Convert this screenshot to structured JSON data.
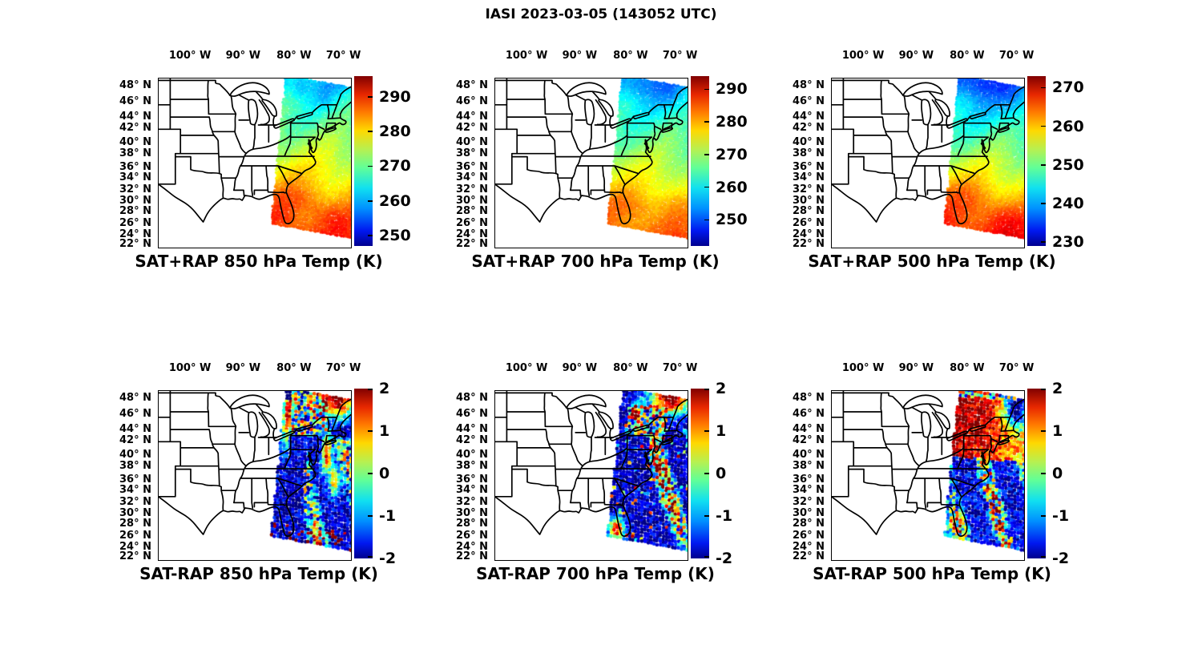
{
  "figure_title": "IASI 2023-03-05 (143052 UTC)",
  "chart_data": {
    "type": "map-grid",
    "rows": 2,
    "cols": 3,
    "region": "eastern United States with state boundaries and IASI satellite swath",
    "lon_ticks": [
      "100° W",
      "90° W",
      "80° W",
      "70° W"
    ],
    "lat_ticks": [
      "48° N",
      "46° N",
      "44° N",
      "42° N",
      "40° N",
      "38° N",
      "36° N",
      "34° N",
      "32° N",
      "30° N",
      "28° N",
      "26° N",
      "24° N",
      "22° N"
    ],
    "colormap": "jet",
    "panels": [
      {
        "title": "SAT+RAP 850 hPa Temp (K)",
        "kind": "analysis",
        "colorbar": {
          "units": "K",
          "min": 247,
          "max": 296,
          "ticks": [
            290,
            280,
            270,
            260,
            250
          ]
        },
        "swath_summary": "cyan/blue ~260 K air over the Great Lakes and New England grading southward to orange ~285-290 K over Florida and the subtropical Atlantic"
      },
      {
        "title": "SAT+RAP 700 hPa Temp (K)",
        "kind": "analysis",
        "colorbar": {
          "units": "K",
          "min": 242,
          "max": 294,
          "ticks": [
            290,
            280,
            270,
            260,
            250
          ]
        },
        "swath_summary": "blue/cyan ~255-260 K north grading to orange-red ~282-288 K south"
      },
      {
        "title": "SAT+RAP 500 hPa Temp (K)",
        "kind": "analysis",
        "colorbar": {
          "units": "K",
          "min": 229,
          "max": 273,
          "ticks": [
            270,
            260,
            250,
            240,
            230
          ]
        },
        "swath_summary": "deep blue ~238 K over the north, green ~250 K mid-Atlantic, orange ~265 K over Florida"
      },
      {
        "title": "SAT-RAP 850 hPa Temp (K)",
        "kind": "difference",
        "colorbar": {
          "units": "K",
          "min": -2,
          "max": 2,
          "ticks": [
            2,
            1,
            0,
            -1,
            -2
          ]
        },
        "swath_summary": "dark blue (< -1.5 K) bias over the mid-Atlantic, dark red (> +1.5 K) cluster over the Northeast and along the northwest swath edge, mixed cyan/yellow speckle offshore, orange dots on the south edge"
      },
      {
        "title": "SAT-RAP 700 hPa Temp (K)",
        "kind": "difference",
        "colorbar": {
          "units": "K",
          "min": -2,
          "max": 2,
          "ticks": [
            2,
            1,
            0,
            -1,
            -2
          ]
        },
        "swath_summary": "predominantly dark blue negative bias with red/orange diagonal streaks offshore, warm cluster over New York/New England and orange dots near the southwest corner"
      },
      {
        "title": "SAT-RAP 500 hPa Temp (K)",
        "kind": "difference",
        "colorbar": {
          "units": "K",
          "min": -2,
          "max": 2,
          "ticks": [
            2,
            1,
            0,
            -1,
            -2
          ]
        },
        "swath_summary": "large dark red (> +1.5 K) region over the Northeast/mid-Atlantic, blue negative bias southeast offshore with diagonal cyan/yellow streaks, green/yellow dots near Florida"
      }
    ]
  }
}
